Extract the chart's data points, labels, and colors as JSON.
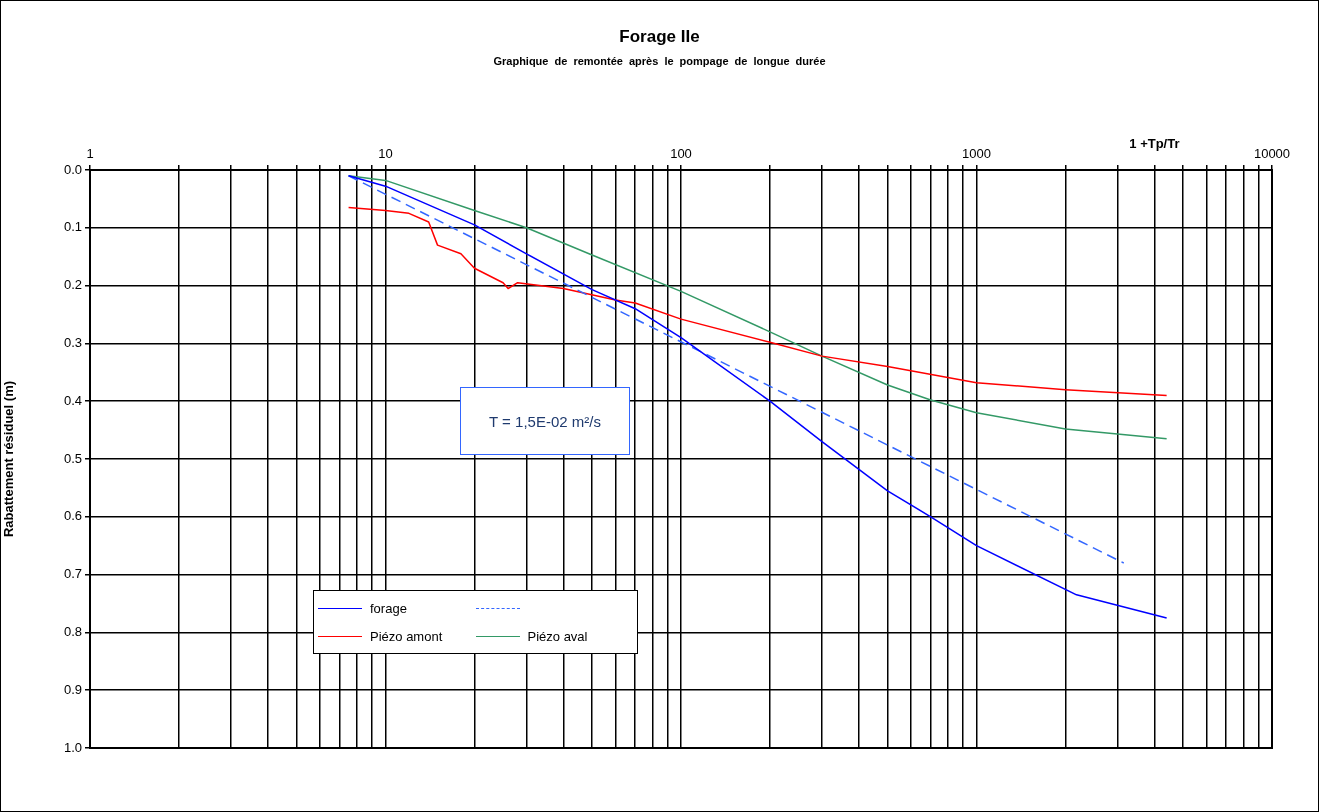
{
  "chart_data": {
    "type": "line",
    "title": "Forage IIe",
    "subtitle": "Graphique de remontée après le pompage de longue durée",
    "xlabel": "1 +Tp/Tr",
    "ylabel": "Rabattement résiduel (m)",
    "log": "x",
    "grid": true,
    "legend": "bottom left",
    "marker": "none",
    "annotations": [
      "T = 1,5E-02  m²/s"
    ],
    "xlim": [
      1,
      10000
    ],
    "ylim": [
      1,
      0
    ],
    "xticks": [
      1,
      {
        "value": 2,
        "label": null
      },
      {
        "value": 3,
        "label": null
      },
      {
        "value": 4,
        "label": null
      },
      {
        "value": 5,
        "label": null
      },
      {
        "value": 6,
        "label": null
      },
      {
        "value": 7,
        "label": null
      },
      {
        "value": 8,
        "label": null
      },
      {
        "value": 9,
        "label": null
      },
      10,
      {
        "value": 20,
        "label": null
      },
      {
        "value": 30,
        "label": null
      },
      {
        "value": 40,
        "label": null
      },
      {
        "value": 50,
        "label": null
      },
      {
        "value": 60,
        "label": null
      },
      {
        "value": 70,
        "label": null
      },
      {
        "value": 80,
        "label": null
      },
      {
        "value": 90,
        "label": null
      },
      100,
      {
        "value": 200,
        "label": null
      },
      {
        "value": 300,
        "label": null
      },
      {
        "value": 400,
        "label": null
      },
      {
        "value": 500,
        "label": null
      },
      {
        "value": 600,
        "label": null
      },
      {
        "value": 700,
        "label": null
      },
      {
        "value": 800,
        "label": null
      },
      {
        "value": 900,
        "label": null
      },
      1000,
      {
        "value": 2000,
        "label": null
      },
      {
        "value": 3000,
        "label": null
      },
      {
        "value": 4000,
        "label": null
      },
      {
        "value": 5000,
        "label": null
      },
      {
        "value": 6000,
        "label": null
      },
      {
        "value": 7000,
        "label": null
      },
      {
        "value": 8000,
        "label": null
      },
      {
        "value": 9000,
        "label": null
      },
      10000
    ],
    "yticks": [
      {
        "value": 0,
        "label": "0.0"
      },
      {
        "value": 0.1,
        "label": "0.1"
      },
      {
        "value": 0.2,
        "label": "0.2"
      },
      {
        "value": 0.3,
        "label": "0.3"
      },
      {
        "value": 0.4,
        "label": "0.4"
      },
      {
        "value": 0.5,
        "label": "0.5"
      },
      {
        "value": 0.6,
        "label": "0.6"
      },
      {
        "value": 0.7,
        "label": "0.7"
      },
      {
        "value": 0.8,
        "label": "0.8"
      },
      {
        "value": 0.9,
        "label": "0.9"
      },
      {
        "value": 1,
        "label": "1.0"
      }
    ],
    "series": [
      {
        "name": "forage",
        "color": "#0000ff",
        "x": [
          7.5,
          10,
          20,
          30,
          50,
          70,
          100,
          200,
          300,
          500,
          700,
          1000,
          2180,
          4400
        ],
        "values": [
          0.01,
          0.028,
          0.095,
          0.145,
          0.207,
          0.24,
          0.29,
          0.4,
          0.47,
          0.555,
          0.6,
          0.65,
          0.735,
          0.775
        ]
      },
      {
        "color": "#3366ff",
        "line_style": "dashed",
        "x": [
          7.5,
          3150
        ],
        "values": [
          0.01,
          0.68
        ]
      },
      {
        "name": "Piézo amont",
        "color": "#ff0000",
        "x": [
          7.5,
          10,
          12,
          14,
          15,
          18,
          20,
          25,
          26,
          28,
          40,
          60,
          70,
          100,
          200,
          300,
          500,
          1000,
          2000,
          4400
        ],
        "values": [
          0.065,
          0.07,
          0.075,
          0.09,
          0.13,
          0.145,
          0.17,
          0.195,
          0.205,
          0.195,
          0.205,
          0.225,
          0.23,
          0.258,
          0.298,
          0.322,
          0.34,
          0.368,
          0.38,
          0.39
        ]
      },
      {
        "name": "Piézo aval",
        "color": "#339966",
        "x": [
          7.5,
          10,
          20,
          30,
          50,
          100,
          200,
          300,
          500,
          700,
          1000,
          2000,
          4400
        ],
        "values": [
          0.01,
          0.018,
          0.07,
          0.1,
          0.147,
          0.21,
          0.28,
          0.322,
          0.372,
          0.398,
          0.42,
          0.448,
          0.465
        ]
      }
    ]
  }
}
